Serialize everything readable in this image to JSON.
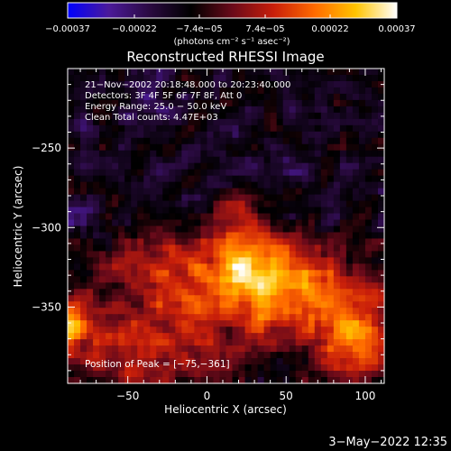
{
  "chart_data": {
    "type": "heatmap",
    "title": "Reconstructed RHESSI Image",
    "xlabel": "Heliocentric X (arcsec)",
    "ylabel": "Heliocentric Y (arcsec)",
    "xlim": [
      -88,
      112
    ],
    "ylim": [
      -398,
      -200
    ],
    "x_ticks": [
      -50,
      0,
      50,
      100
    ],
    "y_ticks": [
      -250,
      -300,
      -350
    ],
    "x_tick_labels": [
      "−50",
      "0",
      "50",
      "100"
    ],
    "y_tick_labels": [
      "−250",
      "−300",
      "−350"
    ],
    "info_lines": [
      "21−Nov−2002 20:18:48.000 to 20:23:40.000",
      "Detectors: 3F 4F 5F 6F 7F 8F, Att 0",
      "Energy Range: 25.0 − 50.0 keV",
      "Clean    Total counts: 4.47E+03"
    ],
    "peak_text": "Position of Peak = [−75,−361]",
    "peak_position": [
      -75,
      -361
    ],
    "colorbar": {
      "range": [
        -0.00037,
        0.00037
      ],
      "tick_values": [
        -0.00037,
        -0.00022,
        -7.4e-05,
        7.4e-05,
        0.00022,
        0.00037
      ],
      "tick_labels": [
        "−0.00037",
        "−0.00022",
        "−7.4e−05",
        "7.4e−05",
        "0.00022",
        "0.00037"
      ],
      "unit_label": "(photons cm⁻² s⁻¹ asec⁻²)",
      "colors": [
        "#0000ff",
        "#4b1a9a",
        "#2a0a40",
        "#000000",
        "#6a0a1a",
        "#c81e0a",
        "#ff6a00",
        "#ffc400",
        "#ffffff"
      ]
    },
    "grid": false,
    "legend": "none",
    "sources": [
      {
        "x": 20,
        "y": -328,
        "sx": 35,
        "sy": 20,
        "amp": 1.0
      },
      {
        "x": -85,
        "y": -358,
        "sx": 9,
        "sy": 13,
        "amp": 1.0
      },
      {
        "x": 65,
        "y": -352,
        "sx": 35,
        "sy": 22,
        "amp": 0.55
      },
      {
        "x": -35,
        "y": -375,
        "sx": 30,
        "sy": 20,
        "amp": 0.6
      },
      {
        "x": 95,
        "y": -372,
        "sx": 15,
        "sy": 18,
        "amp": 0.65
      },
      {
        "x": 20,
        "y": -300,
        "sx": 10,
        "sy": 15,
        "amp": 0.3
      },
      {
        "x": -50,
        "y": -325,
        "sx": 15,
        "sy": 10,
        "amp": 0.4
      }
    ]
  },
  "footer": {
    "timestamp": "3−May−2022 12:35"
  }
}
